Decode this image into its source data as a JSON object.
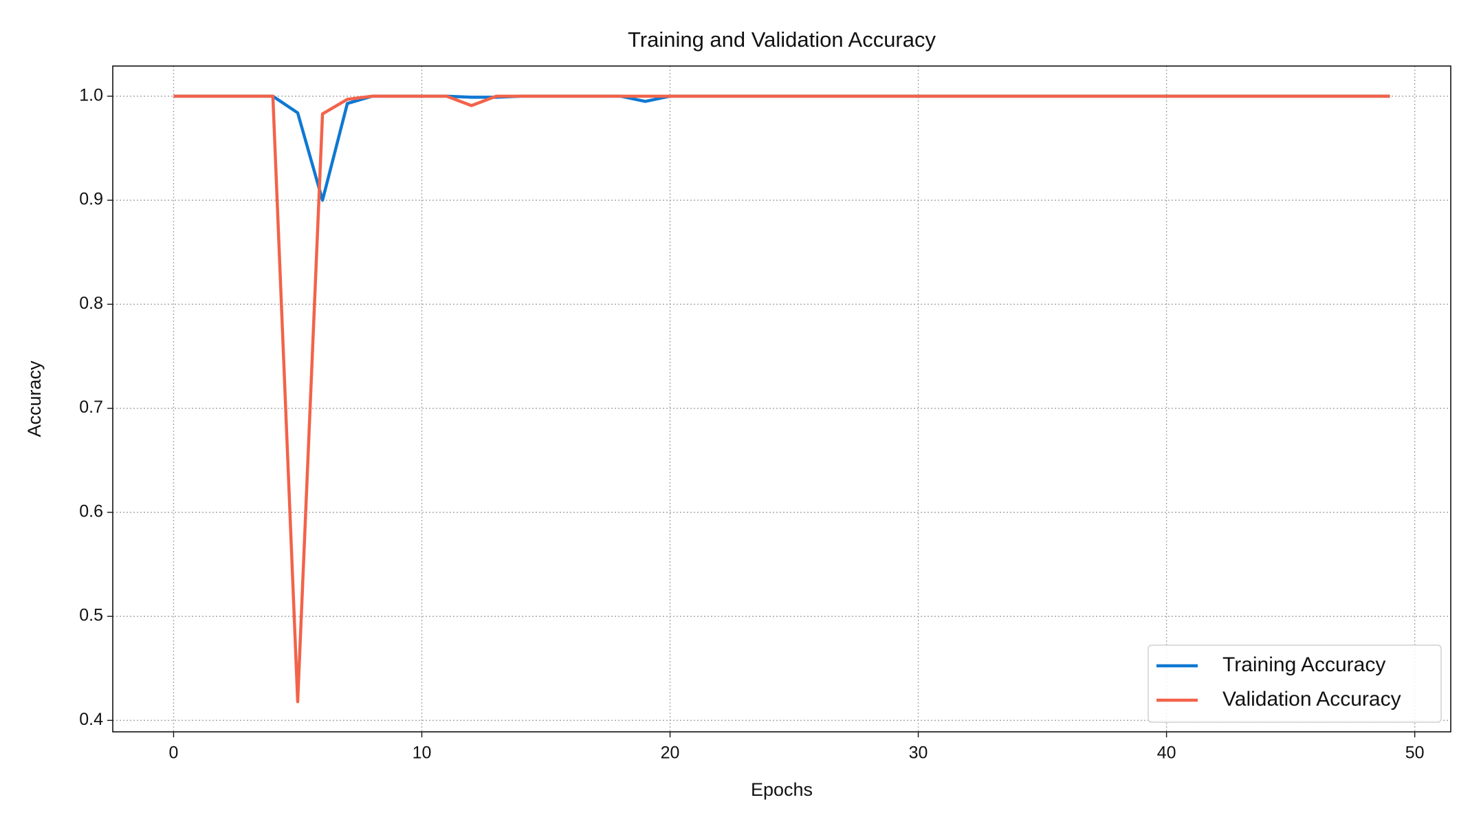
{
  "chart_data": {
    "type": "line",
    "title": "Training and Validation Accuracy",
    "x_label": "Epochs",
    "y_label": "Accuracy",
    "x": [
      0,
      1,
      2,
      3,
      4,
      5,
      6,
      7,
      8,
      9,
      10,
      11,
      12,
      13,
      14,
      15,
      16,
      17,
      18,
      19,
      20,
      21,
      22,
      23,
      24,
      25,
      26,
      27,
      28,
      29,
      30,
      31,
      32,
      33,
      34,
      35,
      36,
      37,
      38,
      39,
      40,
      41,
      42,
      43,
      44,
      45,
      46,
      47,
      48,
      49
    ],
    "series": [
      {
        "name": "Training Accuracy",
        "color": "#0f78d2",
        "values": [
          1.0,
          1.0,
          1.0,
          1.0,
          1.0,
          0.984,
          0.9,
          0.993,
          1.0,
          1.0,
          1.0,
          1.0,
          0.999,
          0.999,
          1.0,
          1.0,
          1.0,
          1.0,
          1.0,
          0.995,
          1.0,
          1.0,
          1.0,
          1.0,
          1.0,
          1.0,
          1.0,
          1.0,
          1.0,
          1.0,
          1.0,
          1.0,
          1.0,
          1.0,
          1.0,
          1.0,
          1.0,
          1.0,
          1.0,
          1.0,
          1.0,
          1.0,
          1.0,
          1.0,
          1.0,
          1.0,
          1.0,
          1.0,
          1.0,
          1.0
        ]
      },
      {
        "name": "Validation Accuracy",
        "color": "#f2634a",
        "values": [
          1.0,
          1.0,
          1.0,
          1.0,
          1.0,
          0.418,
          0.983,
          0.997,
          1.0,
          1.0,
          1.0,
          1.0,
          0.991,
          1.0,
          1.0,
          1.0,
          1.0,
          1.0,
          1.0,
          1.0,
          1.0,
          1.0,
          1.0,
          1.0,
          1.0,
          1.0,
          1.0,
          1.0,
          1.0,
          1.0,
          1.0,
          1.0,
          1.0,
          1.0,
          1.0,
          1.0,
          1.0,
          1.0,
          1.0,
          1.0,
          1.0,
          1.0,
          1.0,
          1.0,
          1.0,
          1.0,
          1.0,
          1.0,
          1.0,
          1.0
        ]
      }
    ],
    "xlim": [
      -2.45,
      51.45
    ],
    "xticks": [
      0,
      10,
      20,
      30,
      40,
      50
    ],
    "ylim": [
      0.389,
      1.029
    ],
    "yticks": [
      0.4,
      0.5,
      0.6,
      0.7,
      0.8,
      0.9,
      {
        "value": 1,
        "label": "1.0"
      }
    ],
    "grid": true,
    "legend": "lower right"
  }
}
